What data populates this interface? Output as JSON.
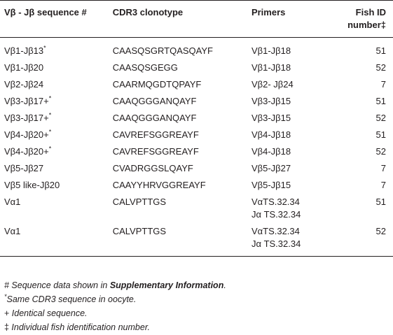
{
  "headers": {
    "col1": "Vβ - Jβ sequence #",
    "col2": "CDR3 clonotype",
    "col3": "Primers",
    "col4_line1": "Fish ID",
    "col4_line2": "number‡"
  },
  "rows": [
    {
      "seq": "Vβ1-Jβ13",
      "mark": "*",
      "cdr3": "CAASQSGRTQASQAYF",
      "primer1": "Vβ1-Jβ18",
      "primer2": "",
      "fish": "51"
    },
    {
      "seq": "Vβ1-Jβ20",
      "mark": "",
      "cdr3": "CAASQSGEGG",
      "primer1": "Vβ1-Jβ18",
      "primer2": "",
      "fish": "52"
    },
    {
      "seq": "Vβ2-Jβ24",
      "mark": "",
      "cdr3": "CAARMQGDTQPAYF",
      "primer1": "Vβ2- Jβ24",
      "primer2": "",
      "fish": "7"
    },
    {
      "seq": "Vβ3-Jβ17+",
      "mark": "*",
      "cdr3": "CAAQGGGANQAYF",
      "primer1": "Vβ3-Jβ15",
      "primer2": "",
      "fish": "51"
    },
    {
      "seq": "Vβ3-Jβ17+",
      "mark": "*",
      "cdr3": "CAAQGGGANQAYF",
      "primer1": "Vβ3-Jβ15",
      "primer2": "",
      "fish": "52"
    },
    {
      "seq": "Vβ4-Jβ20+",
      "mark": "*",
      "cdr3": "CAVREFSGGREAYF",
      "primer1": "Vβ4-Jβ18",
      "primer2": "",
      "fish": "51"
    },
    {
      "seq": "Vβ4-Jβ20+",
      "mark": "*",
      "cdr3": "CAVREFSGGREAYF",
      "primer1": "Vβ4-Jβ18",
      "primer2": "",
      "fish": "52"
    },
    {
      "seq": "Vβ5-Jβ27",
      "mark": "",
      "cdr3": "CVADRGGSLQAYF",
      "primer1": "Vβ5-Jβ27",
      "primer2": "",
      "fish": "7"
    },
    {
      "seq": "Vβ5 like-Jβ20",
      "mark": "",
      "cdr3": "CAAYYHRVGGREAYF",
      "primer1": "Vβ5-Jβ15",
      "primer2": "",
      "fish": "7"
    },
    {
      "seq": "Vα1",
      "mark": "",
      "cdr3": "CALVPTTGS",
      "primer1": "VαTS.32.34",
      "primer2": "Jα TS.32.34",
      "fish": "51"
    },
    {
      "seq": "Vα1",
      "mark": "",
      "cdr3": "CALVPTTGS",
      "primer1": "VαTS.32.34",
      "primer2": "Jα TS.32.34",
      "fish": "52"
    }
  ],
  "footnotes": {
    "f1_pre": "# Sequence data shown in ",
    "f1_bold": "Supplementary Information",
    "f1_post": ".",
    "f2_mark": "*",
    "f2_text": "Same CDR3 sequence in oocyte.",
    "f3_sym": "+",
    "f3_text": " Identical sequence.",
    "f4_sym": "‡",
    "f4_text": " Individual fish identification number."
  }
}
